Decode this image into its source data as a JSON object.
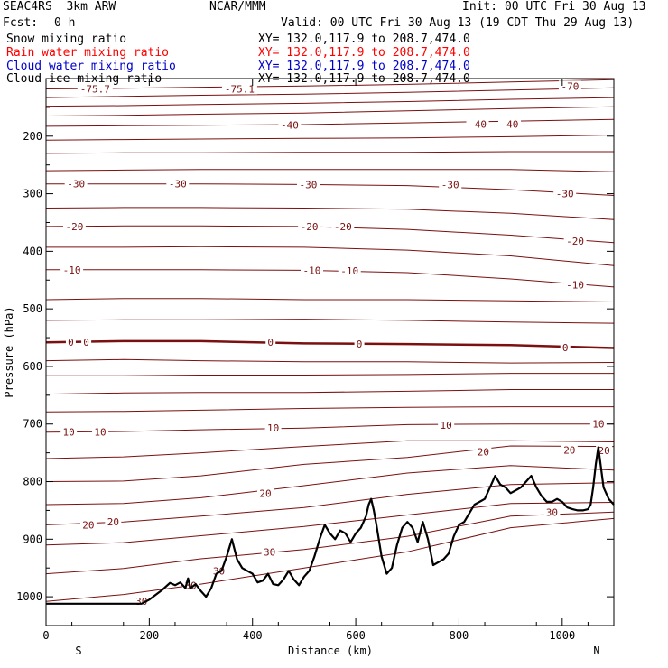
{
  "header": {
    "model": "SEAC4RS  3km ARW",
    "org": "NCAR/MMM",
    "init": "Init: 00 UTC Fri 30 Aug 13",
    "fcst_label": "Fcst:",
    "fcst_value": "0 h",
    "valid": "Valid: 00 UTC Fri 30 Aug 13 (19 CDT Thu 29 Aug 13)",
    "fields": [
      {
        "name": "Snow mixing ratio",
        "xy": "XY= 132.0,117.9 to 208.7,474.0",
        "color": "#000000"
      },
      {
        "name": "Rain water mixing ratio",
        "xy": "XY= 132.0,117.9 to 208.7,474.0",
        "color": "#ff0000"
      },
      {
        "name": "Cloud water mixing ratio",
        "xy": "XY= 132.0,117.9 to 208.7,474.0",
        "color": "#0000cc"
      },
      {
        "name": "Cloud ice mixing ratio",
        "xy": "XY= 132.0,117.9 to 208.7,474.0",
        "color": "#000000"
      }
    ]
  },
  "chart_data": {
    "type": "line",
    "title": "",
    "xlabel": "Distance (km)",
    "ylabel": "Pressure (hPa)",
    "xlim": [
      0,
      1100
    ],
    "ylim": [
      1050,
      100
    ],
    "x_ticks": [
      0,
      200,
      400,
      600,
      800,
      1000
    ],
    "y_ticks": [
      200,
      300,
      400,
      500,
      600,
      700,
      800,
      900,
      1000
    ],
    "y_tick_labels": [
      "200",
      "300",
      "400",
      "500",
      "600",
      "700",
      "800",
      "900",
      "1000"
    ],
    "x_tick_labels": [
      "0",
      "200",
      "400",
      "600",
      "800",
      "1000"
    ],
    "end_labels": {
      "left": "S",
      "right": "N"
    },
    "line_color": "#7a1010",
    "terrain_color": "#000000",
    "isotherms": [
      {
        "x": [
          0,
          150,
          300,
          500,
          700,
          900,
          1100
        ],
        "y": [
          118,
          117,
          115,
          113,
          110,
          106,
          102
        ]
      },
      {
        "x": [
          0,
          150,
          300,
          500,
          700,
          900,
          1100
        ],
        "y": [
          133,
          131,
          129,
          127,
          124,
          120,
          116
        ]
      },
      {
        "x": [
          0,
          150,
          300,
          500,
          700,
          900,
          1100
        ],
        "y": [
          148,
          147,
          145,
          143,
          140,
          136,
          133
        ]
      },
      {
        "x": [
          0,
          150,
          300,
          500,
          700,
          900,
          1100
        ],
        "y": [
          165,
          164,
          162,
          160,
          156,
          152,
          149
        ]
      },
      {
        "x": [
          0,
          150,
          300,
          500,
          700,
          900,
          1100
        ],
        "y": [
          183,
          182,
          181,
          180,
          177,
          174,
          171
        ]
      },
      {
        "x": [
          0,
          150,
          300,
          500,
          700,
          900,
          1100
        ],
        "y": [
          207,
          206,
          205,
          204,
          203,
          201,
          198
        ]
      },
      {
        "x": [
          0,
          150,
          300,
          500,
          700,
          900,
          1100
        ],
        "y": [
          230,
          229,
          229,
          228,
          228,
          227,
          227
        ]
      },
      {
        "x": [
          0,
          150,
          300,
          500,
          700,
          900,
          1100
        ],
        "y": [
          260,
          259,
          258,
          258,
          258,
          258,
          262
        ]
      },
      {
        "x": [
          0,
          150,
          300,
          500,
          700,
          900,
          1100
        ],
        "y": [
          283,
          283,
          283,
          284,
          286,
          293,
          303
        ]
      },
      {
        "x": [
          0,
          150,
          300,
          500,
          700,
          900,
          1100
        ],
        "y": [
          325,
          324,
          324,
          325,
          327,
          334,
          345
        ]
      },
      {
        "x": [
          0,
          150,
          300,
          500,
          700,
          900,
          1100
        ],
        "y": [
          357,
          356,
          356,
          357,
          362,
          372,
          385
        ]
      },
      {
        "x": [
          0,
          150,
          300,
          500,
          700,
          900,
          1100
        ],
        "y": [
          393,
          393,
          392,
          393,
          398,
          408,
          425
        ]
      },
      {
        "x": [
          0,
          150,
          300,
          500,
          700,
          900,
          1100
        ],
        "y": [
          432,
          432,
          432,
          433,
          437,
          448,
          462
        ]
      },
      {
        "x": [
          0,
          150,
          300,
          500,
          700,
          900,
          1100
        ],
        "y": [
          484,
          482,
          482,
          484,
          484,
          486,
          488
        ]
      },
      {
        "x": [
          0,
          150,
          300,
          500,
          700,
          900,
          1100
        ],
        "y": [
          520,
          519,
          519,
          518,
          520,
          523,
          525
        ]
      },
      {
        "x": [
          0,
          150,
          300,
          500,
          700,
          900,
          1100
        ],
        "y": [
          558,
          556,
          556,
          560,
          561,
          563,
          568
        ],
        "bold": true
      },
      {
        "x": [
          0,
          150,
          300,
          500,
          700,
          900,
          1100
        ],
        "y": [
          590,
          588,
          590,
          592,
          592,
          594,
          593
        ]
      },
      {
        "x": [
          0,
          150,
          300,
          500,
          700,
          900,
          1100
        ],
        "y": [
          616,
          616,
          615,
          615,
          614,
          612,
          612
        ]
      },
      {
        "x": [
          0,
          150,
          300,
          500,
          700,
          900,
          1100
        ],
        "y": [
          648,
          646,
          645,
          645,
          643,
          640,
          640
        ]
      },
      {
        "x": [
          0,
          150,
          300,
          500,
          700,
          900,
          1100
        ],
        "y": [
          679,
          678,
          676,
          673,
          671,
          670,
          670
        ]
      },
      {
        "x": [
          0,
          150,
          300,
          500,
          700,
          900,
          1100
        ],
        "y": [
          714,
          713,
          710,
          707,
          701,
          700,
          700
        ]
      },
      {
        "x": [
          0,
          150,
          300,
          500,
          700,
          900,
          1100
        ],
        "y": [
          760,
          757,
          750,
          739,
          729,
          729,
          731
        ]
      },
      {
        "x": [
          0,
          150,
          300,
          500,
          700,
          900,
          1100
        ],
        "y": [
          800,
          799,
          790,
          770,
          758,
          738,
          739
        ]
      },
      {
        "x": [
          0,
          150,
          300,
          500,
          700,
          900,
          1100
        ],
        "y": [
          840,
          838,
          828,
          807,
          785,
          772,
          780
        ]
      },
      {
        "x": [
          0,
          150,
          300,
          500,
          700,
          900,
          1100
        ],
        "y": [
          875,
          870,
          860,
          845,
          822,
          805,
          802
        ]
      },
      {
        "x": [
          0,
          150,
          300,
          500,
          700,
          900,
          1100
        ],
        "y": [
          910,
          906,
          894,
          878,
          858,
          838,
          836
        ]
      },
      {
        "x": [
          0,
          150,
          300,
          500,
          700,
          900,
          1100
        ],
        "y": [
          960,
          951,
          934,
          918,
          895,
          860,
          853
        ]
      },
      {
        "x": [
          0,
          150,
          300,
          500,
          700,
          900,
          1100
        ],
        "y": [
          1008,
          996,
          978,
          950,
          922,
          880,
          864
        ]
      }
    ],
    "labels": [
      {
        "text": "-75.7",
        "x": 95,
        "y": 118
      },
      {
        "text": "-75.1",
        "x": 375,
        "y": 118
      },
      {
        "text": "-70",
        "x": 1015,
        "y": 113
      },
      {
        "text": "-40",
        "x": 472,
        "y": 181
      },
      {
        "text": "-40",
        "x": 836,
        "y": 179
      },
      {
        "text": "-40",
        "x": 898,
        "y": 179
      },
      {
        "text": "-30",
        "x": 58,
        "y": 283
      },
      {
        "text": "-30",
        "x": 255,
        "y": 283
      },
      {
        "text": "-30",
        "x": 508,
        "y": 284
      },
      {
        "text": "-30",
        "x": 783,
        "y": 284
      },
      {
        "text": "-30",
        "x": 1005,
        "y": 300
      },
      {
        "text": "-20",
        "x": 55,
        "y": 357
      },
      {
        "text": "-20",
        "x": 510,
        "y": 357
      },
      {
        "text": "-20",
        "x": 575,
        "y": 357
      },
      {
        "text": "-20",
        "x": 1025,
        "y": 382
      },
      {
        "text": "-10",
        "x": 50,
        "y": 432
      },
      {
        "text": "-10",
        "x": 515,
        "y": 433
      },
      {
        "text": "-10",
        "x": 588,
        "y": 434
      },
      {
        "text": "-10",
        "x": 1025,
        "y": 458
      },
      {
        "text": "0",
        "x": 48,
        "y": 558
      },
      {
        "text": "0",
        "x": 78,
        "y": 558
      },
      {
        "text": "0",
        "x": 435,
        "y": 558
      },
      {
        "text": "0",
        "x": 607,
        "y": 561
      },
      {
        "text": "0",
        "x": 1006,
        "y": 567
      },
      {
        "text": "10",
        "x": 44,
        "y": 714
      },
      {
        "text": "10",
        "x": 105,
        "y": 714
      },
      {
        "text": "10",
        "x": 440,
        "y": 707
      },
      {
        "text": "10",
        "x": 775,
        "y": 702
      },
      {
        "text": "10",
        "x": 1070,
        "y": 700
      },
      {
        "text": "20",
        "x": 82,
        "y": 875
      },
      {
        "text": "20",
        "x": 130,
        "y": 870
      },
      {
        "text": "20",
        "x": 425,
        "y": 820
      },
      {
        "text": "20",
        "x": 847,
        "y": 748
      },
      {
        "text": "20",
        "x": 1014,
        "y": 745
      },
      {
        "text": "20",
        "x": 1081,
        "y": 746
      },
      {
        "text": "30",
        "x": 185,
        "y": 1008
      },
      {
        "text": "30",
        "x": 280,
        "y": 980
      },
      {
        "text": "30",
        "x": 335,
        "y": 955
      },
      {
        "text": "30",
        "x": 433,
        "y": 922
      },
      {
        "text": "30",
        "x": 980,
        "y": 853
      }
    ],
    "terrain": {
      "x": [
        0,
        50,
        100,
        150,
        185,
        200,
        225,
        240,
        250,
        260,
        270,
        275,
        280,
        290,
        300,
        310,
        320,
        330,
        340,
        350,
        360,
        370,
        380,
        390,
        400,
        410,
        420,
        430,
        440,
        450,
        460,
        470,
        480,
        490,
        500,
        510,
        520,
        530,
        540,
        550,
        560,
        570,
        580,
        590,
        600,
        610,
        620,
        625,
        630,
        635,
        640,
        650,
        660,
        670,
        680,
        690,
        700,
        710,
        720,
        730,
        740,
        750,
        760,
        770,
        780,
        790,
        800,
        810,
        820,
        830,
        840,
        850,
        860,
        870,
        880,
        890,
        900,
        910,
        920,
        930,
        940,
        950,
        960,
        970,
        980,
        990,
        1000,
        1010,
        1020,
        1030,
        1040,
        1050,
        1055,
        1060,
        1065,
        1070,
        1080,
        1090,
        1100
      ],
      "y": [
        1012,
        1012,
        1012,
        1012,
        1012,
        1005,
        988,
        976,
        980,
        975,
        985,
        968,
        985,
        978,
        990,
        1000,
        985,
        960,
        955,
        930,
        900,
        935,
        950,
        955,
        960,
        975,
        972,
        960,
        978,
        980,
        970,
        955,
        970,
        980,
        965,
        955,
        930,
        900,
        875,
        890,
        900,
        885,
        890,
        905,
        890,
        880,
        860,
        840,
        830,
        850,
        875,
        930,
        960,
        950,
        910,
        880,
        870,
        880,
        905,
        870,
        900,
        945,
        940,
        935,
        925,
        895,
        875,
        870,
        855,
        840,
        835,
        830,
        810,
        790,
        805,
        810,
        820,
        815,
        810,
        800,
        790,
        810,
        825,
        835,
        835,
        830,
        835,
        845,
        848,
        850,
        850,
        848,
        840,
        810,
        770,
        740,
        810,
        830,
        840
      ]
    }
  }
}
